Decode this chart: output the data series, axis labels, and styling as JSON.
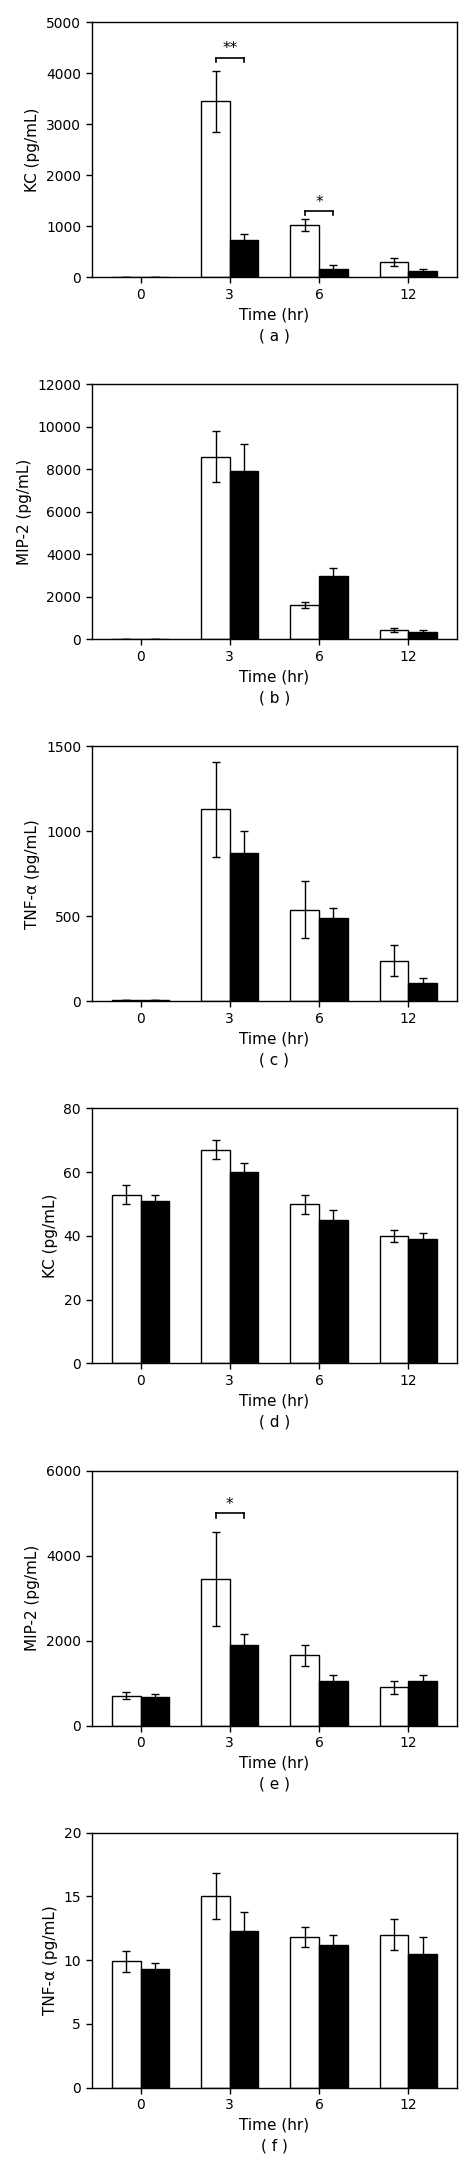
{
  "panels": [
    {
      "label": "( a )",
      "ylabel": "KC (pg/mL)",
      "ylim": [
        0,
        5000
      ],
      "yticks": [
        0,
        1000,
        2000,
        3000,
        4000,
        5000
      ],
      "white_vals": [
        0,
        3450,
        1020,
        300
      ],
      "black_vals": [
        0,
        720,
        170,
        120
      ],
      "white_err": [
        0,
        600,
        120,
        80
      ],
      "black_err": [
        0,
        130,
        60,
        40
      ],
      "sig_markers": [
        {
          "group": 1,
          "y": 4300,
          "label": "**"
        },
        {
          "group": 2,
          "y": 1300,
          "label": "*"
        }
      ]
    },
    {
      "label": "( b )",
      "ylabel": "MIP-2 (pg/mL)",
      "ylim": [
        0,
        12000
      ],
      "yticks": [
        0,
        2000,
        4000,
        6000,
        8000,
        10000,
        12000
      ],
      "white_vals": [
        0,
        8600,
        1600,
        450
      ],
      "black_vals": [
        0,
        7900,
        3000,
        350
      ],
      "white_err": [
        0,
        1200,
        150,
        100
      ],
      "black_err": [
        0,
        1300,
        350,
        80
      ],
      "sig_markers": []
    },
    {
      "label": "( c )",
      "ylabel": "TNF-α (pg/mL)",
      "ylim": [
        0,
        1500
      ],
      "yticks": [
        0,
        500,
        1000,
        1500
      ],
      "white_vals": [
        10,
        1130,
        540,
        240
      ],
      "black_vals": [
        10,
        870,
        490,
        110
      ],
      "white_err": [
        0,
        280,
        170,
        90
      ],
      "black_err": [
        0,
        130,
        60,
        30
      ],
      "sig_markers": []
    },
    {
      "label": "( d )",
      "ylabel": "KC (pg/mL)",
      "ylim": [
        0,
        80
      ],
      "yticks": [
        0,
        20,
        40,
        60,
        80
      ],
      "white_vals": [
        53,
        67,
        50,
        40
      ],
      "black_vals": [
        51,
        60,
        45,
        39
      ],
      "white_err": [
        3,
        3,
        3,
        2
      ],
      "black_err": [
        2,
        3,
        3,
        2
      ],
      "sig_markers": []
    },
    {
      "label": "( e )",
      "ylabel": "MIP-2 (pg/mL)",
      "ylim": [
        0,
        6000
      ],
      "yticks": [
        0,
        2000,
        4000,
        6000
      ],
      "white_vals": [
        700,
        3450,
        1650,
        900
      ],
      "black_vals": [
        680,
        1900,
        1050,
        1050
      ],
      "white_err": [
        80,
        1100,
        250,
        150
      ],
      "black_err": [
        70,
        250,
        150,
        150
      ],
      "sig_markers": [
        {
          "group": 1,
          "y": 5000,
          "label": "*"
        }
      ]
    },
    {
      "label": "( f )",
      "ylabel": "TNF-α (pg/mL)",
      "ylim": [
        0,
        20
      ],
      "yticks": [
        0,
        5,
        10,
        15,
        20
      ],
      "white_vals": [
        9.9,
        15.0,
        11.8,
        12.0
      ],
      "black_vals": [
        9.3,
        12.3,
        11.2,
        10.5
      ],
      "white_err": [
        0.8,
        1.8,
        0.8,
        1.2
      ],
      "black_err": [
        0.5,
        1.5,
        0.8,
        1.3
      ],
      "sig_markers": []
    }
  ],
  "bar_width": 0.32,
  "white_color": "#ffffff",
  "black_color": "#000000",
  "edge_color": "#000000",
  "tick_fontsize": 10,
  "axis_label_fontsize": 11,
  "sublabel_fontsize": 11
}
